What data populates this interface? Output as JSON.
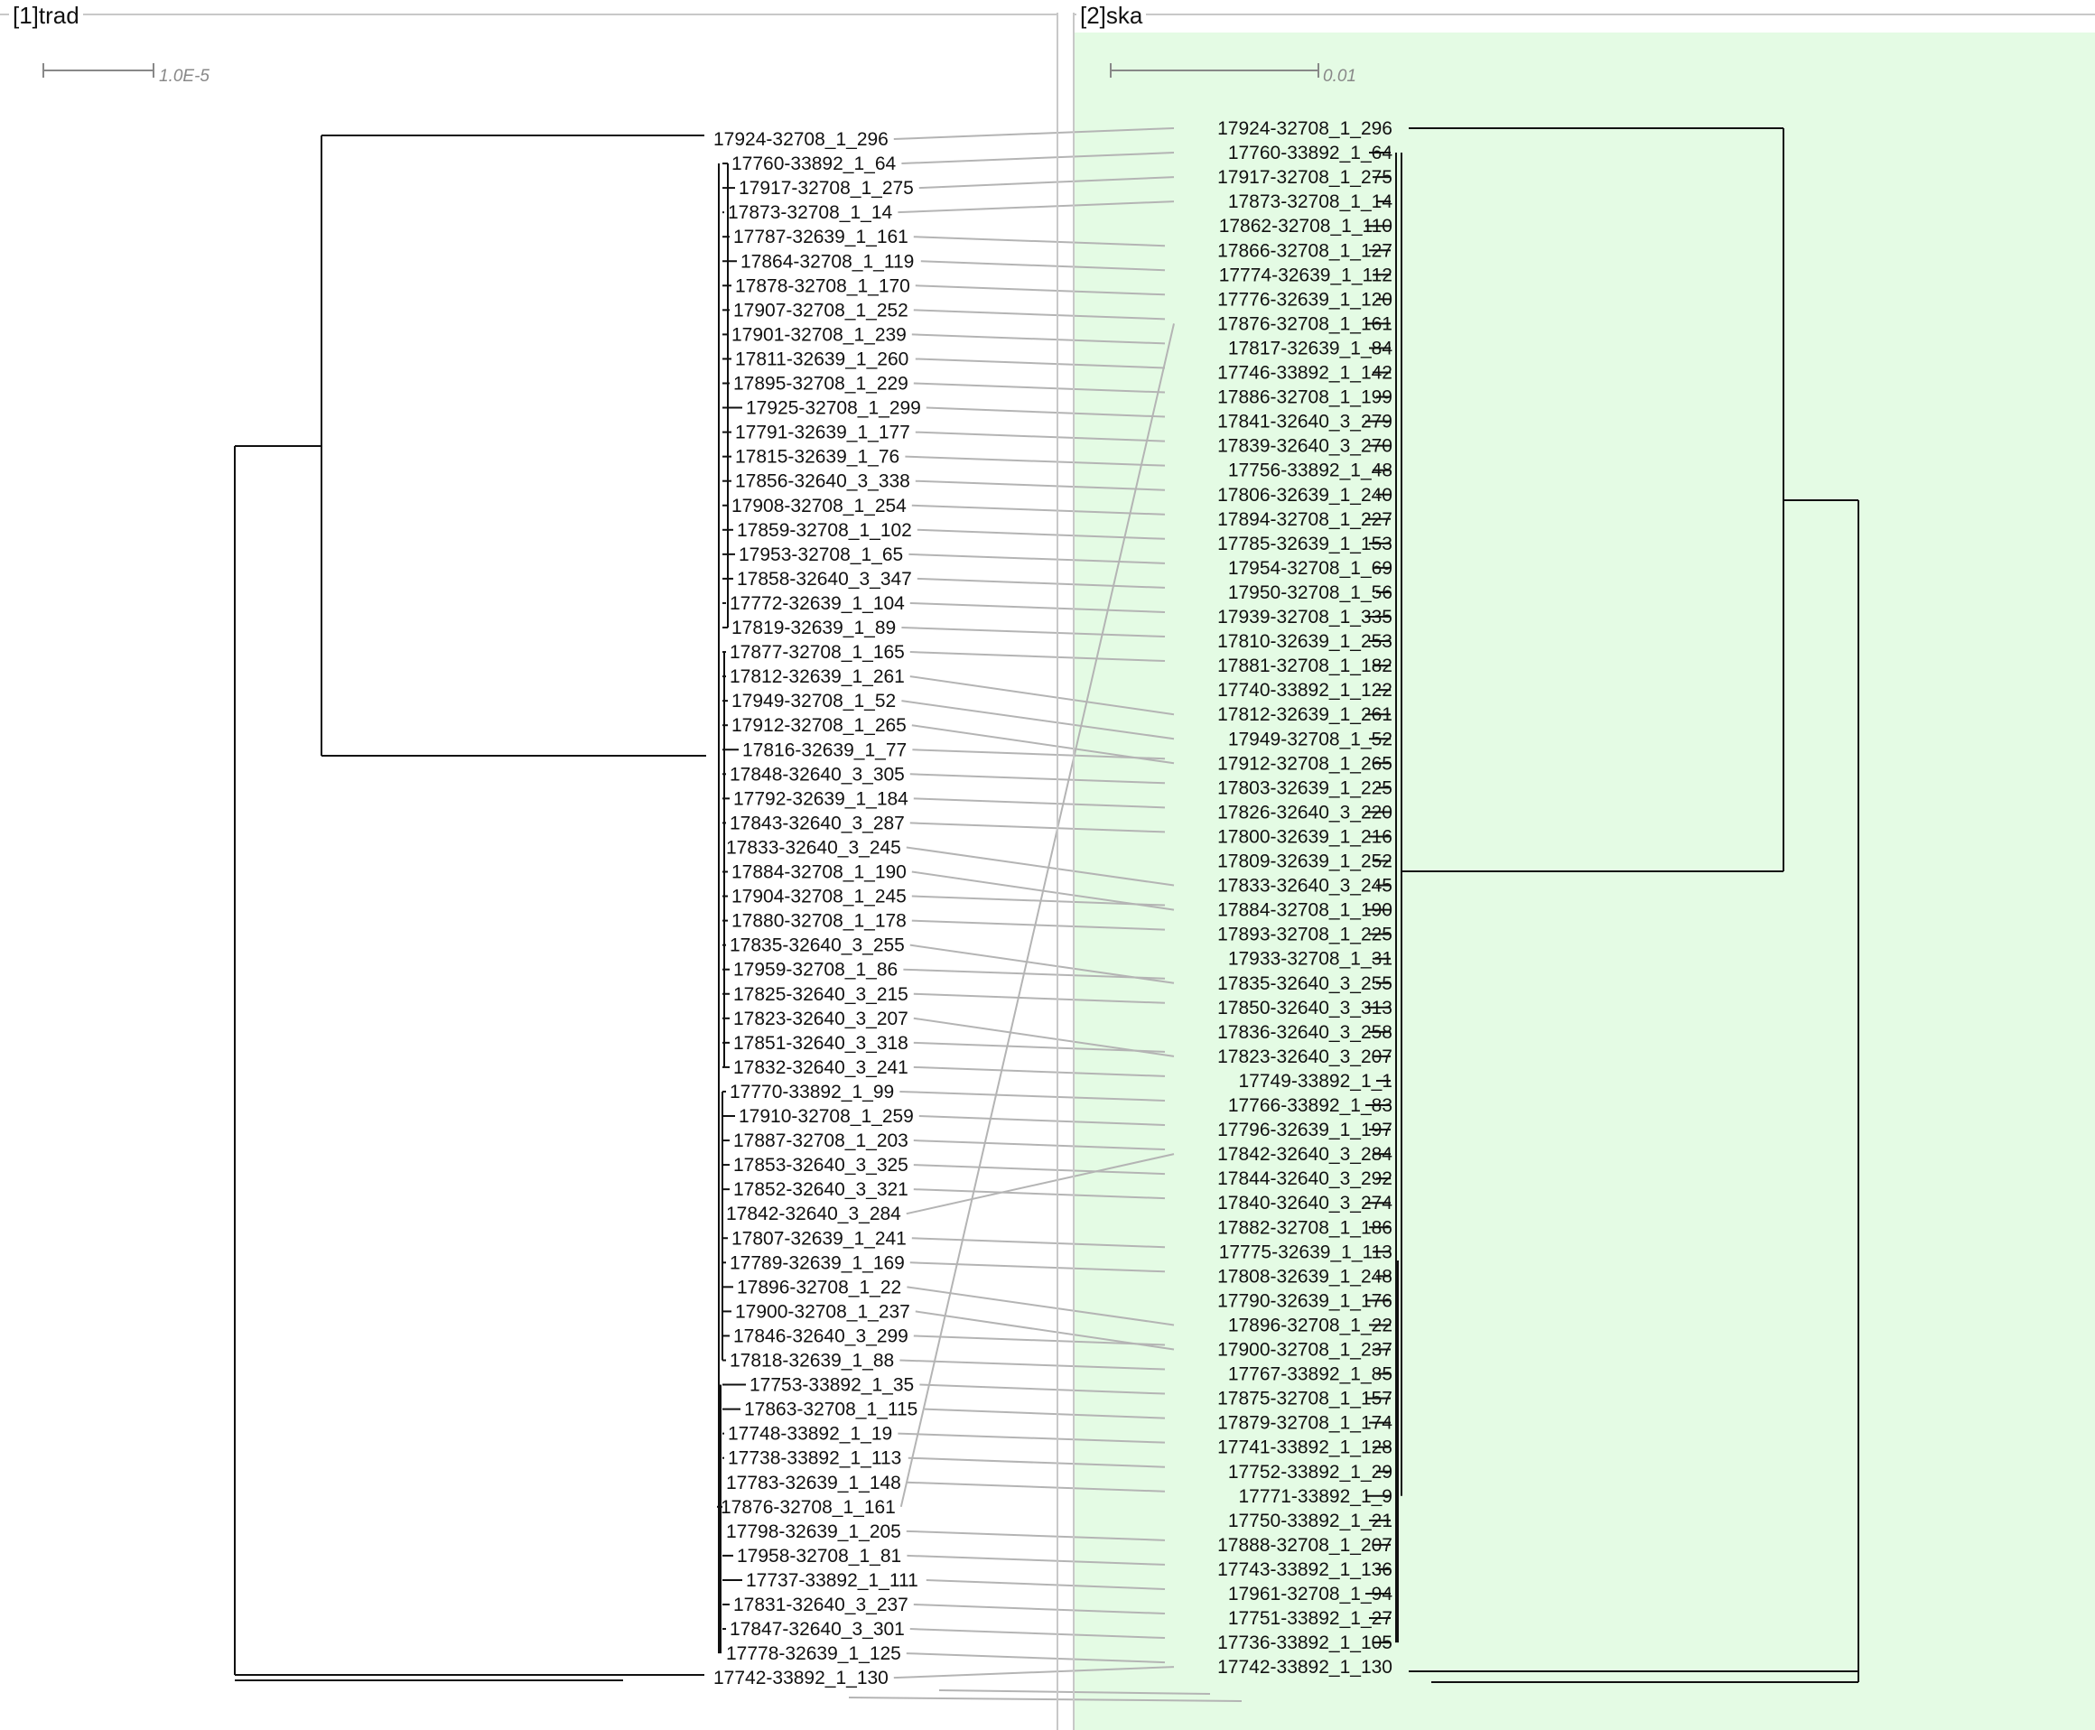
{
  "panels": [
    {
      "id": "trad",
      "title": "[1]trad",
      "scale_label": "1.0E-5",
      "background": "#ffffff",
      "leaves": [
        "17924-32708_1_296",
        "17760-33892_1_64",
        "17917-32708_1_275",
        "17873-32708_1_14",
        "17787-32639_1_161",
        "17864-32708_1_119",
        "17878-32708_1_170",
        "17907-32708_1_252",
        "17901-32708_1_239",
        "17811-32639_1_260",
        "17895-32708_1_229",
        "17925-32708_1_299",
        "17791-32639_1_177",
        "17815-32639_1_76",
        "17856-32640_3_338",
        "17908-32708_1_254",
        "17859-32708_1_102",
        "17953-32708_1_65",
        "17858-32640_3_347",
        "17772-32639_1_104",
        "17819-32639_1_89",
        "17877-32708_1_165",
        "17812-32639_1_261",
        "17949-32708_1_52",
        "17912-32708_1_265",
        "17816-32639_1_77",
        "17848-32640_3_305",
        "17792-32639_1_184",
        "17843-32640_3_287",
        "17833-32640_3_245",
        "17884-32708_1_190",
        "17904-32708_1_245",
        "17880-32708_1_178",
        "17835-32640_3_255",
        "17959-32708_1_86",
        "17825-32640_3_215",
        "17823-32640_3_207",
        "17851-32640_3_318",
        "17832-32640_3_241",
        "17770-33892_1_99",
        "17910-32708_1_259",
        "17887-32708_1_203",
        "17853-32640_3_325",
        "17852-32640_3_321",
        "17842-32640_3_284",
        "17807-32639_1_241",
        "17789-32639_1_169",
        "17896-32708_1_22",
        "17900-32708_1_237",
        "17846-32640_3_299",
        "17818-32639_1_88",
        "17753-33892_1_35",
        "17863-32708_1_115",
        "17748-33892_1_19",
        "17738-33892_1_113",
        "17783-32639_1_148",
        "17876-32708_1_161",
        "17798-32639_1_205",
        "17958-32708_1_81",
        "17737-33892_1_111",
        "17831-32640_3_237",
        "17847-32640_3_301",
        "17778-32639_1_125",
        "17742-33892_1_130"
      ]
    },
    {
      "id": "ska",
      "title": "[2]ska",
      "scale_label": "0.01",
      "background": "#e4fbe4",
      "leaves": [
        "17924-32708_1_296",
        "17760-33892_1_64",
        "17917-32708_1_275",
        "17873-32708_1_14",
        "17862-32708_1_110",
        "17866-32708_1_127",
        "17774-32639_1_112",
        "17776-32639_1_120",
        "17876-32708_1_161",
        "17817-32639_1_84",
        "17746-33892_1_142",
        "17886-32708_1_199",
        "17841-32640_3_279",
        "17839-32640_3_270",
        "17756-33892_1_48",
        "17806-32639_1_240",
        "17894-32708_1_227",
        "17785-32639_1_153",
        "17954-32708_1_69",
        "17950-32708_1_56",
        "17939-32708_1_335",
        "17810-32639_1_253",
        "17881-32708_1_182",
        "17740-33892_1_122",
        "17812-32639_1_261",
        "17949-32708_1_52",
        "17912-32708_1_265",
        "17803-32639_1_225",
        "17826-32640_3_220",
        "17800-32639_1_216",
        "17809-32639_1_252",
        "17833-32640_3_245",
        "17884-32708_1_190",
        "17893-32708_1_225",
        "17933-32708_1_31",
        "17835-32640_3_255",
        "17850-32640_3_313",
        "17836-32640_3_258",
        "17823-32640_3_207",
        "17749-33892_1_1",
        "17766-33892_1_83",
        "17796-32639_1_197",
        "17842-32640_3_284",
        "17844-32640_3_292",
        "17840-32640_3_274",
        "17882-32708_1_186",
        "17775-32639_1_113",
        "17808-32639_1_248",
        "17790-32639_1_176",
        "17896-32708_1_22",
        "17900-32708_1_237",
        "17767-33892_1_85",
        "17875-32708_1_157",
        "17879-32708_1_174",
        "17741-33892_1_128",
        "17752-33892_1_29",
        "17771-33892_1_9",
        "17750-33892_1_21",
        "17888-32708_1_207",
        "17743-33892_1_136",
        "17961-32708_1_94",
        "17751-33892_1_27",
        "17736-33892_1_105",
        "17742-33892_1_130"
      ]
    }
  ],
  "colors": {
    "connector": "#b4b4b4",
    "branch": "#111111",
    "divider": "#c8c8c8"
  }
}
